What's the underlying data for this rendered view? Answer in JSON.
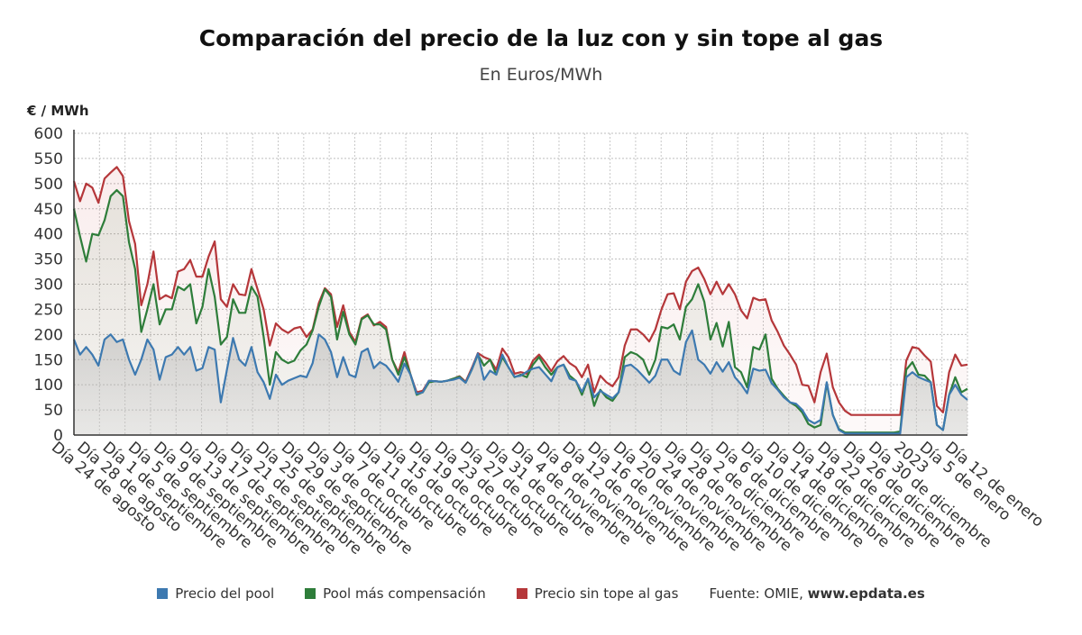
{
  "title": "Comparación del precio de la luz con y sin tope al gas",
  "subtitle": "En Euros/MWh",
  "source_label": "Fuente: OMIE, ",
  "source_site": "www.epdata.es",
  "colors": {
    "pool": "#3d79b0",
    "compensacion": "#2e7d3a",
    "sin_tope": "#b5373a"
  },
  "chart_data": {
    "type": "line",
    "ylabel": "€ / MWh",
    "ylim": [
      0,
      600
    ],
    "yticks": [
      0,
      50,
      100,
      150,
      200,
      250,
      300,
      350,
      400,
      450,
      500,
      550,
      600
    ],
    "grid": true,
    "legend_position": "bottom",
    "x_tick_labels": [
      "Día 24 de agosto",
      "Día 28 de agosto",
      "Día 1 de septiembre",
      "Día 5 de septiembre",
      "Día 9 de septiembre",
      "Día 13 de septiembre",
      "Día 17 de septiembre",
      "Día 21 de septiembre",
      "Día 25 de septiembre",
      "Día 29 de septiembre",
      "Día 3 de octubre",
      "Día 7 de octubre",
      "Día 11 de octubre",
      "Día 15 de octubre",
      "Día 19 de octubre",
      "Día 23 de octubre",
      "Día 27 de octubre",
      "Día 31 de octubre",
      "Día 4 de noviembre",
      "Día 8 de noviembre",
      "Día 12 de noviembre",
      "Día 16 de noviembre",
      "Día 20 de noviembre",
      "Día 24 de noviembre",
      "Día 28 de noviembre",
      "Día 2 de diciembre",
      "Día 6 de diciembre",
      "Día 10 de diciembre",
      "Día 14 de diciembre",
      "Día 18 de diciembre",
      "Día 22 de diciembre",
      "Día 26 de diciembre",
      "Día 30 de diciembre",
      "2023",
      "Día 5 de enero",
      "Día 12 de enero"
    ],
    "series": [
      {
        "name": "Precio del pool",
        "key": "pool",
        "values": [
          190,
          160,
          175,
          160,
          138,
          190,
          200,
          185,
          190,
          150,
          120,
          150,
          190,
          170,
          110,
          155,
          160,
          175,
          160,
          175,
          128,
          133,
          175,
          170,
          65,
          130,
          193,
          150,
          138,
          175,
          125,
          105,
          72,
          120,
          100,
          108,
          113,
          118,
          115,
          143,
          200,
          190,
          165,
          115,
          155,
          120,
          115,
          165,
          172,
          133,
          145,
          138,
          123,
          106,
          142,
          120,
          82,
          85,
          108,
          107,
          106,
          108,
          110,
          114,
          104,
          130,
          162,
          110,
          128,
          120,
          160,
          135,
          116,
          118,
          126,
          132,
          135,
          121,
          107,
          135,
          140,
          112,
          108,
          86,
          112,
          75,
          88,
          80,
          73,
          85,
          137,
          140,
          130,
          117,
          104,
          118,
          150,
          150,
          128,
          120,
          185,
          208,
          150,
          140,
          122,
          145,
          126,
          145,
          115,
          101,
          83,
          132,
          128,
          130,
          103,
          90,
          75,
          65,
          62,
          50,
          30,
          23,
          30,
          105,
          40,
          10,
          3,
          3,
          3,
          3,
          3,
          3,
          3,
          3,
          3,
          3,
          115,
          125,
          115,
          110,
          105,
          20,
          10,
          80,
          100,
          80,
          70
        ]
      },
      {
        "name": "Pool más compensación",
        "key": "compensacion",
        "values": [
          450,
          395,
          345,
          400,
          397,
          427,
          475,
          487,
          475,
          383,
          330,
          205,
          250,
          300,
          220,
          250,
          250,
          295,
          288,
          300,
          222,
          255,
          330,
          275,
          180,
          195,
          270,
          243,
          243,
          295,
          275,
          195,
          100,
          165,
          150,
          143,
          148,
          168,
          180,
          208,
          255,
          290,
          275,
          190,
          245,
          200,
          180,
          230,
          238,
          220,
          220,
          210,
          150,
          120,
          155,
          120,
          80,
          85,
          105,
          107,
          106,
          108,
          112,
          116,
          104,
          130,
          160,
          138,
          150,
          120,
          155,
          135,
          115,
          120,
          115,
          140,
          155,
          135,
          120,
          135,
          140,
          118,
          108,
          80,
          112,
          58,
          90,
          75,
          68,
          85,
          155,
          165,
          160,
          150,
          120,
          150,
          215,
          212,
          220,
          190,
          255,
          270,
          300,
          265,
          190,
          223,
          176,
          225,
          135,
          125,
          95,
          175,
          170,
          200,
          112,
          92,
          78,
          65,
          58,
          45,
          22,
          15,
          20,
          103,
          40,
          12,
          5,
          5,
          5,
          5,
          5,
          5,
          5,
          5,
          5,
          7,
          130,
          145,
          120,
          118,
          105,
          20,
          10,
          80,
          115,
          85,
          92
        ]
      },
      {
        "name": "Precio sin tope al gas",
        "key": "sin_tope",
        "values": [
          505,
          465,
          500,
          492,
          462,
          510,
          522,
          533,
          515,
          425,
          380,
          258,
          300,
          365,
          270,
          278,
          272,
          325,
          330,
          348,
          315,
          315,
          355,
          385,
          270,
          255,
          300,
          280,
          278,
          330,
          290,
          250,
          178,
          222,
          210,
          203,
          212,
          215,
          195,
          210,
          262,
          292,
          280,
          215,
          258,
          205,
          185,
          232,
          240,
          218,
          225,
          215,
          150,
          125,
          165,
          120,
          85,
          88,
          108,
          107,
          106,
          108,
          112,
          117,
          106,
          133,
          163,
          155,
          150,
          130,
          172,
          155,
          122,
          125,
          122,
          148,
          160,
          145,
          127,
          147,
          157,
          143,
          135,
          115,
          140,
          85,
          118,
          105,
          97,
          115,
          178,
          210,
          210,
          200,
          186,
          210,
          250,
          280,
          282,
          250,
          305,
          326,
          333,
          310,
          280,
          305,
          280,
          300,
          280,
          248,
          232,
          273,
          268,
          270,
          228,
          205,
          178,
          160,
          140,
          100,
          98,
          65,
          125,
          162,
          95,
          65,
          48,
          40,
          40,
          40,
          40,
          40,
          40,
          40,
          40,
          40,
          148,
          175,
          172,
          158,
          146,
          58,
          45,
          125,
          160,
          138,
          140
        ]
      }
    ]
  }
}
